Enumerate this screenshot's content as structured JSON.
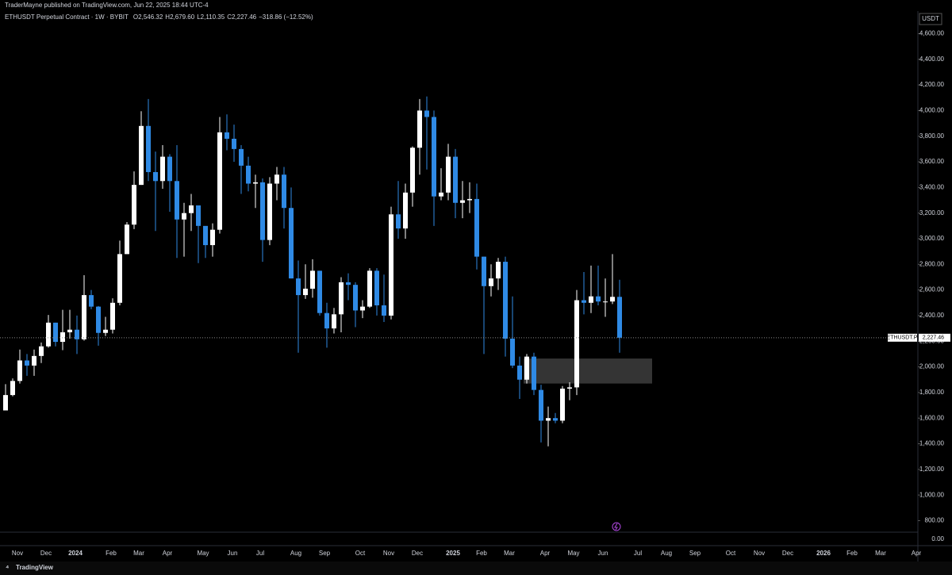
{
  "header": "TraderMayne published on TradingView.com, Jun 22, 2025 18:44 UTC-4",
  "footer": "TradingView",
  "chart_data": {
    "type": "candlestick",
    "symbol": "ETHUSDT Perpetual Contract · 1W · BYBIT",
    "ohlc_legend": [
      {
        "key": "O",
        "text": "2,546.32"
      },
      {
        "key": "H",
        "text": "2,679.60"
      },
      {
        "key": "L",
        "text": "2,110.35"
      },
      {
        "key": "C",
        "text": "2,227.46"
      }
    ],
    "change": "−318.86 (−12.52%)",
    "currency": "USDT",
    "up_color": "#ffffff",
    "down_color": "#2f8ae5",
    "open": [
      1660,
      1780,
      1890,
      2050,
      2010,
      2085,
      2160,
      2345,
      2195,
      2270,
      2290,
      2215,
      2560,
      2470,
      2265,
      2290,
      2500,
      2880,
      3110,
      3420,
      3880,
      3520,
      3450,
      3640,
      3450,
      3150,
      3200,
      3260,
      3100,
      2950,
      3070,
      3830,
      3780,
      3700,
      3570,
      3430,
      3440,
      2990,
      3430,
      3500,
      3240,
      2690,
      2560,
      2610,
      2750,
      2420,
      2300,
      2410,
      2660,
      2640,
      2440,
      2470,
      2750,
      2480,
      2400,
      3190,
      3080,
      3360,
      3710,
      4000,
      3950,
      3330,
      3360,
      3640,
      3280,
      3300,
      3310,
      2860,
      2630,
      2690,
      2820,
      2220,
      2010,
      1900,
      2080,
      1820,
      1580,
      1600,
      1580,
      1830,
      1840,
      2520,
      2500,
      2550,
      2510,
      2510,
      2546.32
    ],
    "high": [
      1865,
      1910,
      2135,
      2100,
      2135,
      2190,
      2405,
      2345,
      2445,
      2445,
      2400,
      2715,
      2600,
      2475,
      2390,
      2535,
      2985,
      3130,
      3525,
      3995,
      4090,
      3680,
      3730,
      3660,
      3730,
      3280,
      3350,
      3260,
      3070,
      3120,
      3950,
      3970,
      3890,
      3730,
      3640,
      3500,
      3470,
      3480,
      3560,
      3560,
      3400,
      2830,
      2800,
      2840,
      2750,
      2500,
      2460,
      2700,
      2730,
      2660,
      2520,
      2770,
      2770,
      2720,
      3250,
      3450,
      3430,
      3720,
      4090,
      4110,
      4000,
      3550,
      3740,
      3700,
      3450,
      3440,
      3430,
      2860,
      2800,
      2850,
      2860,
      2550,
      2080,
      2100,
      2110,
      1860,
      1690,
      1640,
      1850,
      1880,
      2600,
      2740,
      2790,
      2790,
      2690,
      2880,
      2679.6
    ],
    "low": [
      1660,
      1770,
      1870,
      1930,
      1930,
      2030,
      2150,
      2160,
      2130,
      2220,
      2100,
      2205,
      2450,
      2165,
      2240,
      2260,
      2480,
      2880,
      3075,
      3420,
      3450,
      3060,
      3390,
      3210,
      2850,
      2860,
      3060,
      2810,
      2850,
      2860,
      3040,
      3690,
      3600,
      3350,
      3370,
      3240,
      2820,
      2950,
      3300,
      3080,
      2690,
      2110,
      2530,
      2540,
      2400,
      2150,
      2260,
      2270,
      2520,
      2310,
      2380,
      2460,
      2400,
      2350,
      2370,
      3000,
      3000,
      3250,
      3500,
      3540,
      3100,
      3300,
      3300,
      3160,
      3160,
      3200,
      2760,
      2100,
      2550,
      2600,
      2080,
      1990,
      1750,
      1870,
      1780,
      1410,
      1380,
      1560,
      1560,
      1740,
      1780,
      2410,
      2420,
      2480,
      2390,
      2490,
      2110.35
    ],
    "close": [
      1780,
      1890,
      2050,
      2010,
      2085,
      2160,
      2345,
      2195,
      2270,
      2290,
      2215,
      2560,
      2470,
      2265,
      2290,
      2500,
      2880,
      3110,
      3420,
      3880,
      3520,
      3450,
      3640,
      3450,
      3150,
      3200,
      3260,
      3100,
      2950,
      3070,
      3830,
      3780,
      3700,
      3570,
      3430,
      3440,
      2990,
      3430,
      3500,
      3240,
      2690,
      2560,
      2610,
      2750,
      2420,
      2300,
      2410,
      2660,
      2640,
      2440,
      2470,
      2750,
      2480,
      2400,
      3190,
      3080,
      3360,
      3710,
      4000,
      3950,
      3330,
      3360,
      3640,
      3280,
      3300,
      3310,
      2860,
      2630,
      2690,
      2820,
      2220,
      2010,
      1900,
      2080,
      1820,
      1580,
      1600,
      1580,
      1830,
      1840,
      2520,
      2500,
      2550,
      2510,
      2510,
      2546.32,
      2227.46
    ],
    "xticks": [
      "Nov",
      "Dec",
      "2024",
      "Feb",
      "Mar",
      "Apr",
      "May",
      "Jun",
      "Jul",
      "Aug",
      "Sep",
      "Oct",
      "Nov",
      "Dec",
      "2025",
      "Feb",
      "Mar",
      "Apr",
      "May",
      "Jun",
      "Jul",
      "Aug",
      "Sep",
      "Oct",
      "Nov",
      "Dec",
      "2026",
      "Feb",
      "Mar",
      "Apr"
    ],
    "ylim": [
      710,
      4770
    ],
    "yticks": [
      {
        "value": 800,
        "label": "800.00"
      },
      {
        "value": 1000,
        "label": "1,000.00"
      },
      {
        "value": 1200,
        "label": "1,200.00"
      },
      {
        "value": 1400,
        "label": "1,400.00"
      },
      {
        "value": 1600,
        "label": "1,600.00"
      },
      {
        "value": 1800,
        "label": "1,800.00"
      },
      {
        "value": 2000,
        "label": "2,000.00"
      },
      {
        "value": 2200,
        "label": "2,200.00"
      },
      {
        "value": 2400,
        "label": "2,400.00"
      },
      {
        "value": 2600,
        "label": "2,600.00"
      },
      {
        "value": 2800,
        "label": "2,800.00"
      },
      {
        "value": 3000,
        "label": "3,000.00"
      },
      {
        "value": 3200,
        "label": "3,200.00"
      },
      {
        "value": 3400,
        "label": "3,400.00"
      },
      {
        "value": 3600,
        "label": "3,600.00"
      },
      {
        "value": 3800,
        "label": "3,800.00"
      },
      {
        "value": 4000,
        "label": "4,000.00"
      },
      {
        "value": 4200,
        "label": "4,200.00"
      },
      {
        "value": 4400,
        "label": "4,400.00"
      },
      {
        "value": 4600,
        "label": "4,600.00"
      }
    ],
    "zone": {
      "low": 1870,
      "high": 2065,
      "color": "#3a3a3a"
    },
    "price_line": {
      "name": "ETHUSDT.P",
      "value": 2227.46,
      "label": "2,227.46"
    },
    "pane2_yticks": [
      {
        "value": 0,
        "label": "0.00"
      }
    ]
  }
}
